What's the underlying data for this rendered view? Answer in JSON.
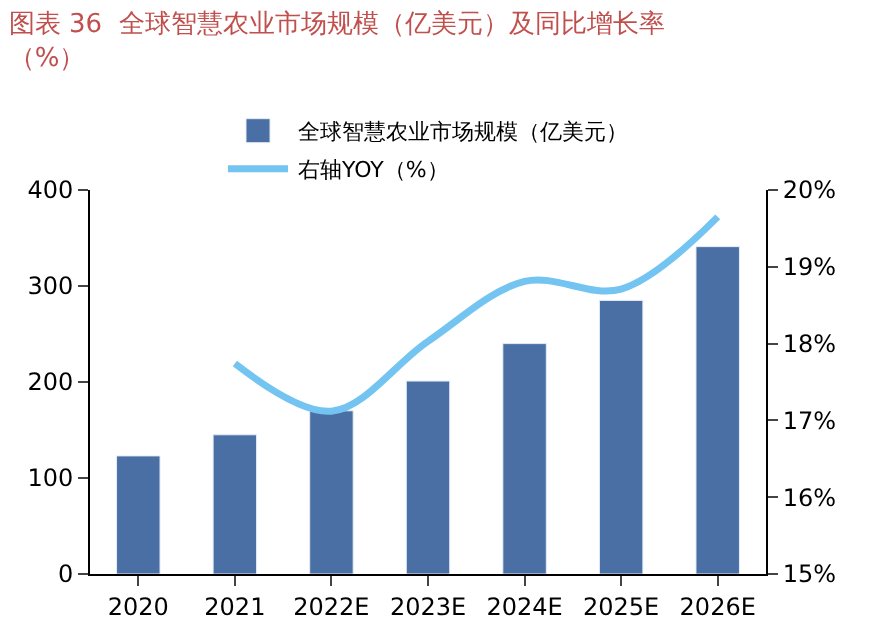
{
  "chart_data": {
    "type": "bar",
    "title": "图表 36  全球智慧农业市场规模（亿美元）及同比增长率（%）",
    "categories": [
      "2020",
      "2021",
      "2022E",
      "2023E",
      "2024E",
      "2025E",
      "2026E"
    ],
    "series": [
      {
        "name": "全球智慧农业市场规模（亿美元）",
        "color": "#4a6fa5",
        "values": [
          123,
          145,
          170,
          201,
          240,
          285,
          341
        ]
      },
      {
        "name": "右轴YOY（%）",
        "type": "line",
        "axis": "y2",
        "color": "#74c4f2",
        "values": [
          null,
          17.74,
          17.12,
          18.03,
          18.81,
          18.71,
          19.65
        ]
      }
    ],
    "ylim": [
      0,
      400
    ],
    "yticks": [
      0,
      100,
      200,
      300,
      400
    ],
    "y2lim": [
      15,
      20
    ],
    "y2ticks": [
      {
        "value": 15,
        "label": "15%"
      },
      {
        "value": 16,
        "label": "16%"
      },
      {
        "value": 17,
        "label": "17%"
      },
      {
        "value": 18,
        "label": "18%"
      },
      {
        "value": 19,
        "label": "19%"
      },
      {
        "value": 20,
        "label": "20%"
      }
    ],
    "grid": false,
    "legend": "top",
    "marker": "none"
  }
}
